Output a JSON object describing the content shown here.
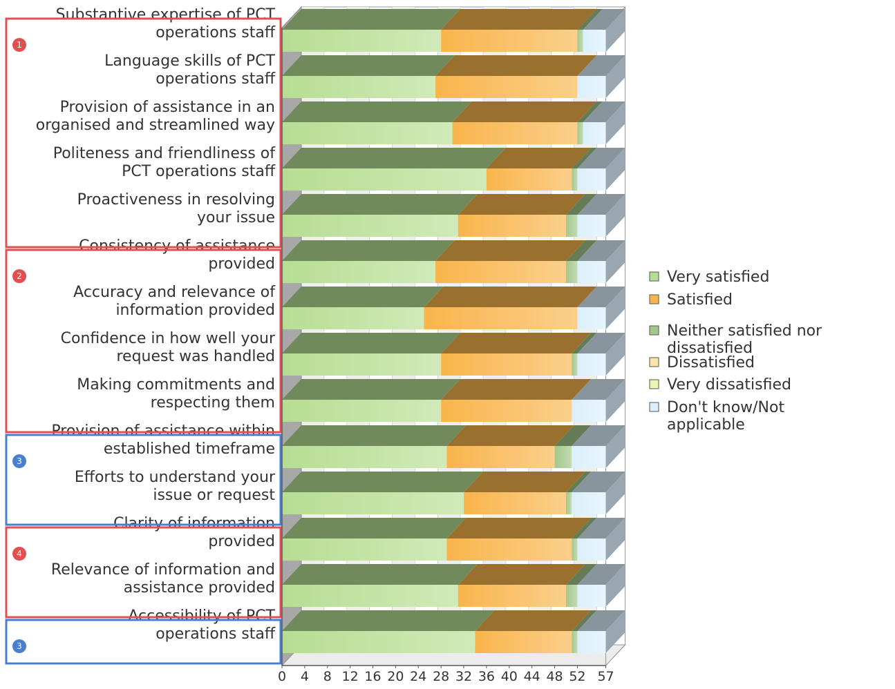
{
  "chart_data": {
    "type": "bar",
    "orientation": "horizontal",
    "stacked": true,
    "three_d": true,
    "title": "",
    "xlabel": "",
    "ylabel": "",
    "xlim": [
      0,
      57
    ],
    "x_ticks": [
      "0",
      "4",
      "8",
      "12",
      "16",
      "20",
      "24",
      "28",
      "32",
      "36",
      "40",
      "44",
      "48",
      "52",
      "57"
    ],
    "x_tick_values": [
      0,
      4,
      8,
      12,
      16,
      20,
      24,
      28,
      32,
      36,
      40,
      44,
      48,
      52,
      57
    ],
    "grid": true,
    "legend_position": "right",
    "categories": [
      [
        "Substantive expertise of PCT",
        "operations staff"
      ],
      [
        "Language skills of PCT",
        "operations staff"
      ],
      [
        "Provision of assistance in an",
        "organised and streamlined way"
      ],
      [
        "Politeness and friendliness of",
        "PCT operations staff"
      ],
      [
        "Proactiveness in resolving",
        "your issue"
      ],
      [
        "Consistency of assistance",
        "provided"
      ],
      [
        "Accuracy and relevance of",
        "information provided"
      ],
      [
        "Confidence in how well your",
        "request was handled"
      ],
      [
        "Making commitments and",
        "respecting them"
      ],
      [
        "Provision of assistance within",
        "established timeframe"
      ],
      [
        "Efforts to understand your",
        "issue or request"
      ],
      [
        "Clarity of information",
        "provided"
      ],
      [
        "Relevance of information and",
        "assistance provided"
      ],
      [
        "Accessibility of PCT",
        "operations staff"
      ]
    ],
    "series": [
      {
        "name": "Very satisfied",
        "color": "#b6de92",
        "values": [
          28,
          27,
          30,
          36,
          31,
          27,
          25,
          28,
          28,
          29,
          32,
          29,
          31,
          34
        ]
      },
      {
        "name": "Satisfied",
        "color": "#f9b54c",
        "values": [
          24,
          25,
          22,
          15,
          19,
          23,
          27,
          23,
          23,
          19,
          18,
          22,
          19,
          17
        ]
      },
      {
        "name": "Neither satisfied nor dissatisfied",
        "color": "#a3c88a",
        "values": [
          1,
          0,
          1,
          1,
          2,
          2,
          0,
          1,
          0,
          3,
          1,
          1,
          2,
          1
        ]
      },
      {
        "name": "Dissatisfied",
        "color": "#fbe3a8",
        "values": [
          0,
          0,
          0,
          0,
          0,
          0,
          0,
          0,
          0,
          0,
          0,
          0,
          0,
          0
        ]
      },
      {
        "name": "Very dissatisfied",
        "color": "#eef5b4",
        "values": [
          0,
          0,
          0,
          0,
          0,
          0,
          0,
          0,
          0,
          0,
          0,
          0,
          0,
          0
        ]
      },
      {
        "name": "Don't know/Not applicable",
        "color": "#dbf0fb",
        "values": [
          4,
          5,
          4,
          5,
          5,
          5,
          5,
          5,
          6,
          6,
          6,
          5,
          5,
          5
        ]
      }
    ],
    "groups": [
      {
        "badge": "1",
        "color": "#e05050",
        "start": 0,
        "end": 4
      },
      {
        "badge": "2",
        "color": "#e05050",
        "start": 5,
        "end": 8
      },
      {
        "badge": "3",
        "color": "#4a7fd0",
        "start": 9,
        "end": 10
      },
      {
        "badge": "4",
        "color": "#e05050",
        "start": 11,
        "end": 12
      },
      {
        "badge": "3",
        "color": "#4a7fd0",
        "start": 13,
        "end": 13
      }
    ]
  }
}
